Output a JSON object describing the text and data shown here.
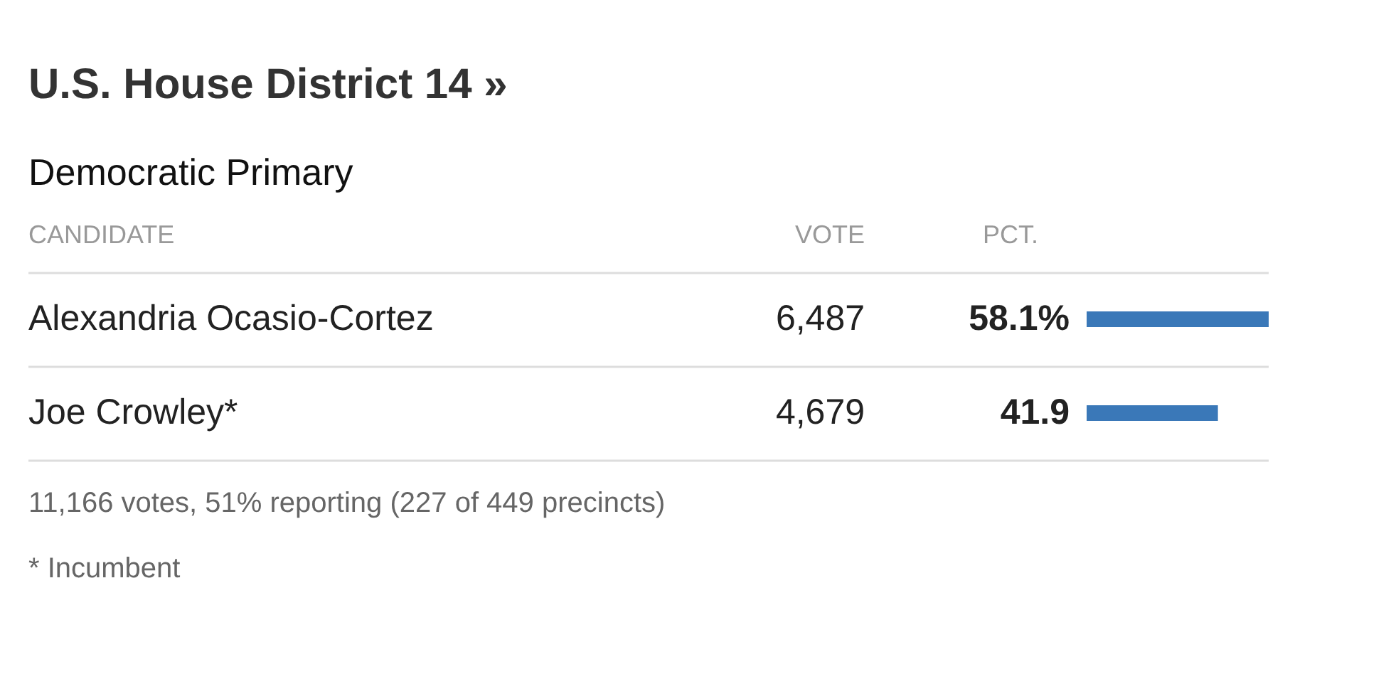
{
  "chart_data": {
    "type": "bar",
    "orientation": "horizontal",
    "title": "U.S. House District 14 »",
    "subtitle": "Democratic Primary",
    "categories": [
      "Alexandria Ocasio-Cortez",
      "Joe Crowley*"
    ],
    "values": [
      58.1,
      41.9
    ],
    "value_labels": [
      "58.1%",
      "41.9"
    ],
    "color": "#3a78b8",
    "annotations": [
      "CANDIDATE",
      "VOTE",
      "PCT.",
      "6,487",
      "4,679",
      "11,166 votes, 51% reporting (227 of 449 precincts)",
      "* Incumbent"
    ]
  }
}
